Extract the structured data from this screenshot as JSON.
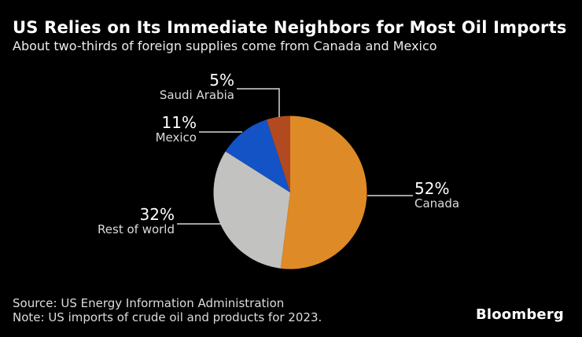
{
  "header": {
    "title": "US Relies on Its Immediate Neighbors for Most Oil Imports",
    "subtitle": "About two-thirds of foreign supplies come from Canada and Mexico"
  },
  "chart_data": {
    "type": "pie",
    "title": "US Relies on Its Immediate Neighbors for Most Oil Imports",
    "subtitle": "About two-thirds of foreign supplies come from Canada and Mexico",
    "unit": "percent",
    "start_angle_deg": 0,
    "direction": "clockwise",
    "background_color": "#000000",
    "slices": [
      {
        "label": "Canada",
        "value": 52,
        "pct_label": "52%",
        "color": "#DD8A27"
      },
      {
        "label": "Rest of world",
        "value": 32,
        "pct_label": "32%",
        "color": "#C2C2C1"
      },
      {
        "label": "Mexico",
        "value": 11,
        "pct_label": "11%",
        "color": "#1453C5"
      },
      {
        "label": "Saudi Arabia",
        "value": 5,
        "pct_label": "5%",
        "color": "#B14A21"
      }
    ]
  },
  "footer": {
    "source": "Source: US Energy Information Administration",
    "note": "Note: US imports of crude oil and products for 2023.",
    "brand": "Bloomberg"
  }
}
